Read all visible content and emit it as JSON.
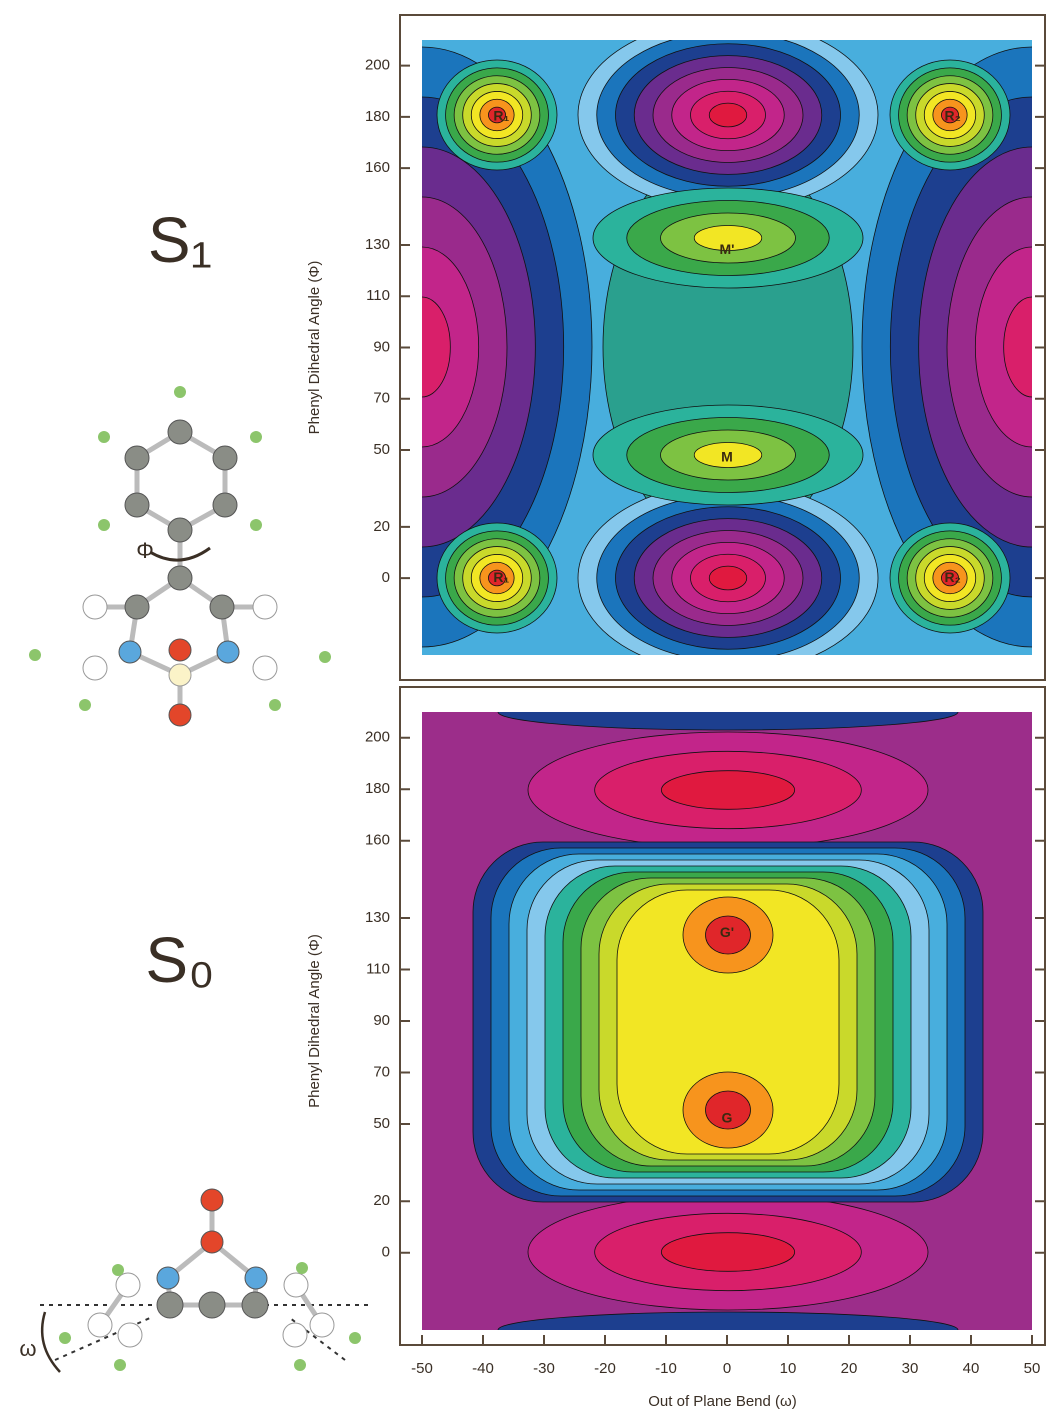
{
  "chart_data": [
    {
      "type": "contour",
      "panel_label": "S₁",
      "molecule_symbol": "Φ",
      "y_label": "Phenyl Dihedral Angle (Φ)",
      "xlim": [
        -50,
        50
      ],
      "ylim": [
        -30,
        210
      ],
      "yticks": [
        0,
        20,
        50,
        70,
        90,
        110,
        130,
        160,
        180,
        200
      ],
      "points": [
        {
          "label": "R₁",
          "x": -37,
          "y": 180
        },
        {
          "label": "R₂",
          "x": 37,
          "y": 180
        },
        {
          "label": "M'",
          "x": 0,
          "y": 128
        },
        {
          "label": "M",
          "x": 0,
          "y": 47
        },
        {
          "label": "R₁",
          "x": -37,
          "y": 0
        },
        {
          "label": "R₂",
          "x": 37,
          "y": 0
        }
      ]
    },
    {
      "type": "contour",
      "panel_label": "S₀",
      "molecule_symbol": "ω",
      "y_label": "Phenyl Dihedral Angle (Φ)",
      "x_label": "Out of Plane Bend (ω)",
      "xlim": [
        -50,
        50
      ],
      "ylim": [
        -30,
        210
      ],
      "xticks": [
        -50,
        -40,
        -30,
        -20,
        -10,
        0,
        10,
        20,
        30,
        40,
        50
      ],
      "yticks": [
        0,
        20,
        50,
        70,
        90,
        110,
        130,
        160,
        180,
        200
      ],
      "points": [
        {
          "label": "G'",
          "x": 0,
          "y": 124
        },
        {
          "label": "G",
          "x": 0,
          "y": 52
        }
      ]
    }
  ]
}
